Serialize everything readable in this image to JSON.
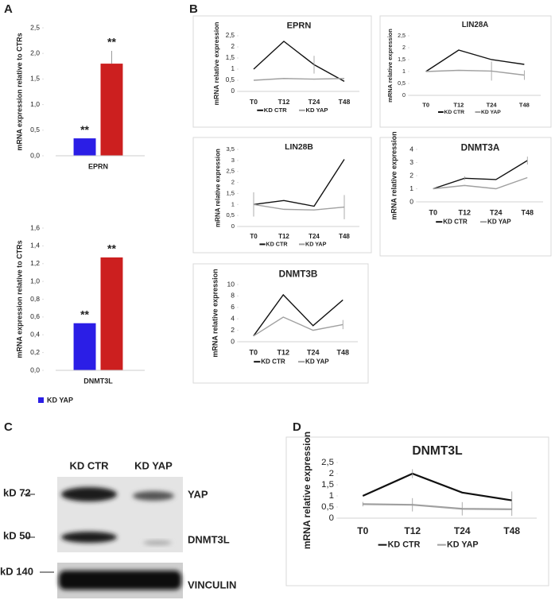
{
  "panel_labels": [
    "A",
    "B",
    "C",
    "D"
  ],
  "chart_data": [
    {
      "type": "bar",
      "ylabel": "mRNA expression relative to CTRs",
      "categories": [
        "EPRN"
      ],
      "series": [
        {
          "color": "#2b1ee6",
          "values": [
            0.34
          ]
        },
        {
          "color": "#cc1f1f",
          "values": [
            1.8
          ],
          "errors": [
            0.25
          ]
        }
      ],
      "annotations": [
        "**",
        "**"
      ],
      "ylim": [
        0,
        2.5
      ],
      "yticks": [
        {
          "value": 0,
          "label": "0,0"
        },
        {
          "value": 0.5,
          "label": "0,5"
        },
        {
          "value": 1,
          "label": "1,0"
        },
        {
          "value": 1.5,
          "label": "1,5"
        },
        {
          "value": 2,
          "label": "2,0"
        },
        {
          "value": 2.5,
          "label": "2,5"
        }
      ]
    },
    {
      "type": "bar",
      "ylabel": "mRNA expression relative to CTRs",
      "categories": [
        "DNMT3L"
      ],
      "series": [
        {
          "name": "KD YAP",
          "color": "#2b1ee6",
          "values": [
            0.53
          ]
        },
        {
          "color": "#cc1f1f",
          "values": [
            1.27
          ]
        }
      ],
      "annotations": [
        "**",
        "**"
      ],
      "ylim": [
        0,
        1.6
      ],
      "yticks": [
        {
          "value": 0,
          "label": "0,0"
        },
        {
          "value": 0.2,
          "label": "0,2"
        },
        {
          "value": 0.4,
          "label": "0,4"
        },
        {
          "value": 0.6,
          "label": "0,6"
        },
        {
          "value": 0.8,
          "label": "0,8"
        },
        {
          "value": 1,
          "label": "1,0"
        },
        {
          "value": 1.2,
          "label": "1,2"
        },
        {
          "value": 1.4,
          "label": "1,4"
        },
        {
          "value": 1.6,
          "label": "1,6"
        }
      ]
    },
    {
      "type": "line",
      "title": "EPRN",
      "ylabel": "mRNA relative expression",
      "categories": [
        "T0",
        "T12",
        "T24",
        "T48"
      ],
      "series": [
        {
          "name": "KD CTR",
          "color": "#111111",
          "values": [
            1,
            2.25,
            1.2,
            0.45
          ],
          "errors": [
            0,
            0,
            0.4,
            0
          ]
        },
        {
          "name": "KD YAP",
          "color": "#a0a0a0",
          "values": [
            0.5,
            0.58,
            0.55,
            0.58
          ]
        }
      ],
      "ylim": [
        0,
        2.5
      ],
      "yticks": [
        0,
        {
          "value": 0.5,
          "label": "0,5"
        },
        1,
        {
          "value": 1.5,
          "label": "1,5"
        },
        2,
        {
          "value": 2.5,
          "label": "2,5"
        }
      ]
    },
    {
      "type": "line",
      "title": "LIN28A",
      "ylabel": "mRNA relative expression",
      "categories": [
        "T0",
        "T12",
        "T24",
        "T48"
      ],
      "series": [
        {
          "name": "KD CTR",
          "color": "#111111",
          "values": [
            1,
            1.9,
            1.5,
            1.3
          ]
        },
        {
          "name": "KD YAP",
          "color": "#a0a0a0",
          "values": [
            1,
            1.05,
            1.02,
            0.85
          ],
          "errors": [
            0,
            0,
            0.4,
            0.2
          ]
        }
      ],
      "ylim": [
        0,
        2.5
      ],
      "yticks": [
        0,
        {
          "value": 0.5,
          "label": "0,5"
        },
        1,
        {
          "value": 1.5,
          "label": "1,5"
        },
        2,
        {
          "value": 2.5,
          "label": "2,5"
        }
      ]
    },
    {
      "type": "line",
      "title": "LIN28B",
      "ylabel": "mRNA relative expression",
      "categories": [
        "T0",
        "T12",
        "T24",
        "T48"
      ],
      "series": [
        {
          "name": "KD CTR",
          "color": "#111111",
          "values": [
            1,
            1.18,
            0.92,
            3.05
          ]
        },
        {
          "name": "KD YAP",
          "color": "#a0a0a0",
          "values": [
            1,
            0.78,
            0.75,
            0.88
          ],
          "errors": [
            0.55,
            0,
            0,
            0.55
          ]
        }
      ],
      "ylim": [
        0,
        3.5
      ],
      "yticks": [
        0,
        {
          "value": 0.5,
          "label": "0,5"
        },
        1,
        {
          "value": 1.5,
          "label": "1,5"
        },
        2,
        {
          "value": 2.5,
          "label": "2,5"
        },
        3,
        {
          "value": 3.5,
          "label": "3,5"
        }
      ]
    },
    {
      "type": "line",
      "title": "DNMT3A",
      "ylabel": "mRNA relative expression",
      "categories": [
        "T0",
        "T12",
        "T24",
        "T48"
      ],
      "series": [
        {
          "name": "KD CTR",
          "color": "#111111",
          "values": [
            1,
            1.8,
            1.7,
            3.15
          ],
          "errors": [
            0,
            0.15,
            0,
            0.3
          ]
        },
        {
          "name": "KD YAP",
          "color": "#a0a0a0",
          "values": [
            1,
            1.25,
            1.0,
            1.85
          ]
        }
      ],
      "ylim": [
        0,
        4
      ],
      "yticks": [
        0,
        1,
        2,
        3,
        4
      ]
    },
    {
      "type": "line",
      "title": "DNMT3B",
      "ylabel": "mRNA relative expression",
      "categories": [
        "T0",
        "T12",
        "T24",
        "T48"
      ],
      "series": [
        {
          "name": "KD CTR",
          "color": "#111111",
          "values": [
            1,
            8.2,
            2.8,
            7.3
          ]
        },
        {
          "name": "KD YAP",
          "color": "#a0a0a0",
          "values": [
            1,
            4.3,
            2.0,
            3.0
          ],
          "errors": [
            0,
            0,
            0,
            0.8
          ]
        }
      ],
      "ylim": [
        0,
        10
      ],
      "yticks": [
        0,
        2,
        4,
        6,
        8,
        10
      ]
    },
    {
      "type": "line",
      "title": "DNMT3L",
      "ylabel": "mRNA relative expression",
      "categories": [
        "T0",
        "T12",
        "T24",
        "T48"
      ],
      "series": [
        {
          "name": "KD CTR",
          "color": "#111111",
          "values": [
            1,
            2.0,
            1.15,
            0.8
          ],
          "errors": [
            0,
            0.2,
            0,
            0.4
          ]
        },
        {
          "name": "KD YAP",
          "color": "#a0a0a0",
          "values": [
            0.63,
            0.6,
            0.42,
            0.4
          ],
          "errors": [
            0.1,
            0.3,
            0.3,
            0.3
          ]
        }
      ],
      "ylim": [
        0,
        2.5
      ],
      "yticks": [
        0,
        {
          "value": 0.5,
          "label": "0,5"
        },
        1,
        {
          "value": 1.5,
          "label": "1,5"
        },
        2,
        {
          "value": 2.5,
          "label": "2,5"
        }
      ]
    }
  ],
  "blot": {
    "lanes": [
      "KD CTR",
      "KD YAP"
    ],
    "markers": [
      "kD 72",
      "kD 50",
      "kD 140"
    ],
    "proteins": [
      "YAP",
      "DNMT3L",
      "VINCULIN"
    ]
  }
}
